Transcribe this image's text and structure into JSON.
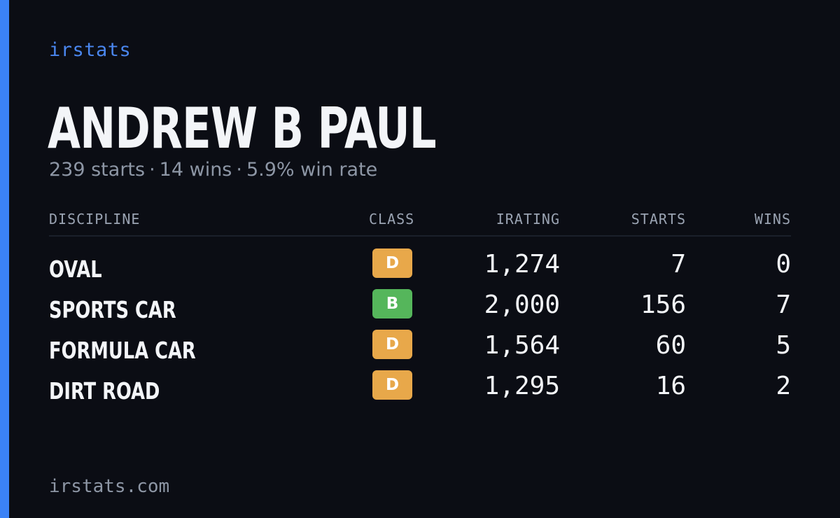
{
  "brand": "irstats",
  "player": {
    "name": "ANDREW B PAUL",
    "starts": "239 starts",
    "wins": "14 wins",
    "win_rate": "5.9% win rate",
    "separator": "·"
  },
  "columns": {
    "discipline": "DISCIPLINE",
    "class": "CLASS",
    "irating": "IRATING",
    "starts": "STARTS",
    "wins": "WINS"
  },
  "rows": [
    {
      "discipline": "OVAL",
      "class": "D",
      "class_color": "#e8a84a",
      "irating": "1,274",
      "starts": "7",
      "wins": "0"
    },
    {
      "discipline": "SPORTS CAR",
      "class": "B",
      "class_color": "#55b65b",
      "irating": "2,000",
      "starts": "156",
      "wins": "7"
    },
    {
      "discipline": "FORMULA CAR",
      "class": "D",
      "class_color": "#e8a84a",
      "irating": "1,564",
      "starts": "60",
      "wins": "5"
    },
    {
      "discipline": "DIRT ROAD",
      "class": "D",
      "class_color": "#e8a84a",
      "irating": "1,295",
      "starts": "16",
      "wins": "2"
    }
  ],
  "footer": "irstats.com",
  "colors": {
    "background": "#0b0d14",
    "accent": "#3b82f6"
  }
}
